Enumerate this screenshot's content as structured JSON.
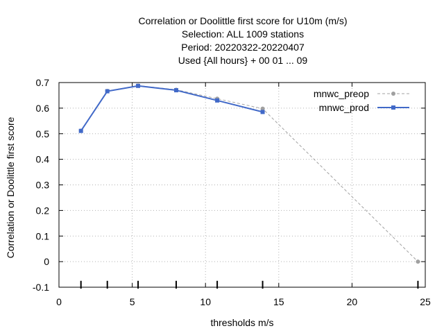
{
  "chart_data": {
    "type": "line",
    "title_lines": [
      "Correlation or Doolittle first score  for U10m (m/s)",
      "Selection: ALL    1009 stations",
      "Period: 20220322-20220407",
      "Used {All hours} + 00 01 ... 09"
    ],
    "xlabel": "thresholds m/s",
    "ylabel": "Correlation or Doolittle first score",
    "xlim": [
      0,
      25
    ],
    "ylim": [
      -0.1,
      0.7
    ],
    "xticks": [
      0,
      5,
      10,
      15,
      20,
      25
    ],
    "yticks": [
      -0.1,
      0,
      0.1,
      0.2,
      0.3,
      0.4,
      0.5,
      0.6,
      0.7
    ],
    "ytick_labels": [
      "-0.1",
      "0",
      "0.1",
      "0.2",
      "0.3",
      "0.4",
      "0.5",
      "0.6",
      "0.7"
    ],
    "grid": true,
    "legend_position": "top-right",
    "threshold_markers": [
      1.5,
      3.3,
      5.4,
      8.0,
      10.8,
      13.9,
      24.5
    ],
    "series": [
      {
        "name": "mnwc_preop",
        "color": "#a0a0a0",
        "style": "dashed",
        "x": [
          1.5,
          3.3,
          5.4,
          8.0,
          10.8,
          13.9,
          24.5
        ],
        "y": [
          0.512,
          0.667,
          0.688,
          0.672,
          0.637,
          0.598,
          0.0
        ]
      },
      {
        "name": "mnwc_prod",
        "color": "#4169c8",
        "style": "solid",
        "x": [
          1.5,
          3.3,
          5.4,
          8.0,
          10.8,
          13.9
        ],
        "y": [
          0.511,
          0.666,
          0.687,
          0.67,
          0.63,
          0.585
        ]
      }
    ]
  }
}
